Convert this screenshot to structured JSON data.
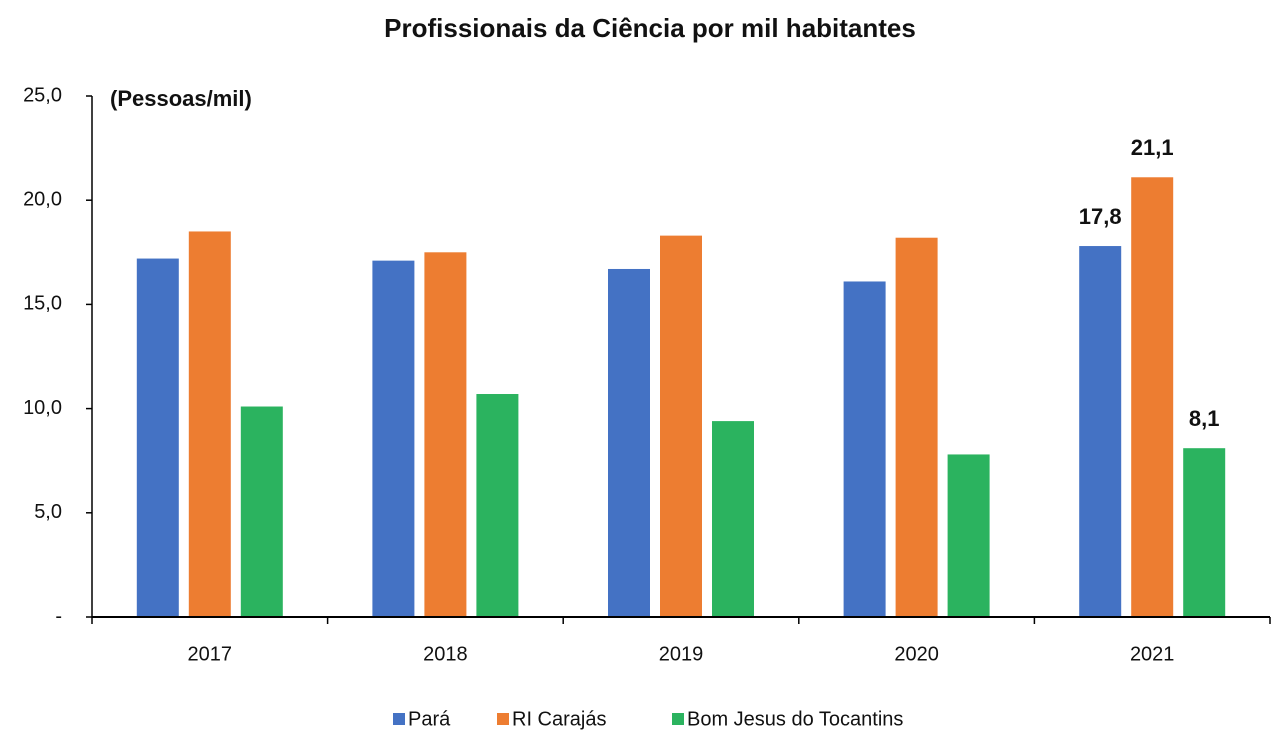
{
  "chart_data": {
    "type": "bar",
    "title": "Profissionais da Ciência por  mil habitantes",
    "annotation": "(Pessoas/mil)",
    "categories": [
      "2017",
      "2018",
      "2019",
      "2020",
      "2021"
    ],
    "series": [
      {
        "name": "Pará",
        "color": "#4472c4",
        "values": [
          17.2,
          17.1,
          16.7,
          16.1,
          17.8
        ],
        "value_labels": [
          null,
          null,
          null,
          null,
          "17,8"
        ]
      },
      {
        "name": "RI Carajás",
        "color": "#ed7d31",
        "values": [
          18.5,
          17.5,
          18.3,
          18.2,
          21.1
        ],
        "value_labels": [
          null,
          null,
          null,
          null,
          "21,1"
        ]
      },
      {
        "name": "Bom Jesus do Tocantins",
        "color": "#2bb35f",
        "values": [
          10.1,
          10.7,
          9.4,
          7.8,
          8.1
        ],
        "value_labels": [
          null,
          null,
          null,
          null,
          "8,1"
        ]
      }
    ],
    "ylim": [
      0,
      25
    ],
    "yticks": [
      {
        "value": 0,
        "label": "-"
      },
      {
        "value": 5,
        "label": "5,0"
      },
      {
        "value": 10,
        "label": "10,0"
      },
      {
        "value": 15,
        "label": "15,0"
      },
      {
        "value": 20,
        "label": "20,0"
      },
      {
        "value": 25,
        "label": "25,0"
      }
    ],
    "legend": "bottom"
  }
}
